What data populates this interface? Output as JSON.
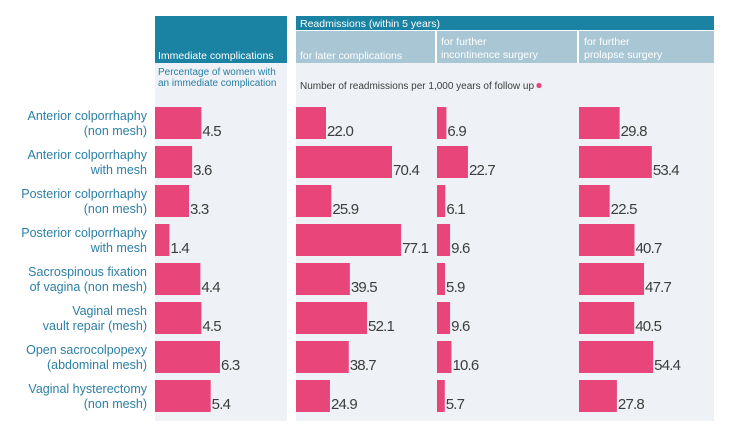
{
  "chart_data": {
    "type": "bar",
    "orientation": "horizontal",
    "colors": {
      "bar": "#e8467a",
      "header_dark": "#1a82a3",
      "header_light": "#a9c6d5",
      "panel_bg": "#eef1f5",
      "label": "#2b7fa6",
      "value": "#3d3d3d",
      "header_text": "#ffffff",
      "info_dot": "#e8467a"
    },
    "readmissions_header": "Readmissions (within 5 years)",
    "categories": [
      "Anterior colporrhaphy (non mesh)",
      "Anterior colporrhaphy with mesh",
      "Posterior colporrhaphy (non mesh)",
      "Posterior colporrhaphy with mesh",
      "Sacrospinous fixation of vagina (non mesh)",
      "Vaginal mesh vault repair (mesh)",
      "Open sacrocolpopexy (abdominal mesh)",
      "Vaginal hysterectomy (non mesh)"
    ],
    "category_lines": [
      [
        "Anterior colporrhaphy",
        "(non mesh)"
      ],
      [
        "Anterior colporrhaphy",
        "with mesh"
      ],
      [
        "Posterior colporrhaphy",
        "(non mesh)"
      ],
      [
        "Posterior colporrhaphy",
        "with mesh"
      ],
      [
        "Sacrospinous fixation",
        "of vagina (non mesh)"
      ],
      [
        "Vaginal mesh",
        "vault repair (mesh)"
      ],
      [
        "Open sacrocolpopexy",
        "(abdominal mesh)"
      ],
      [
        "Vaginal hysterectomy",
        "(non mesh)"
      ]
    ],
    "series": [
      {
        "name": "Immediate complications",
        "header_lines": [
          "Immediate complications"
        ],
        "subtitle_lines": [
          "Percentage of women with",
          "an immediate complication"
        ],
        "values": [
          4.5,
          3.6,
          3.3,
          1.4,
          4.4,
          4.5,
          6.3,
          5.4
        ],
        "labels": [
          "4.5",
          "3.6",
          "3.3",
          "1.4",
          "4.4",
          "4.5",
          "6.3",
          "5.4"
        ],
        "xlim": [
          0,
          8
        ]
      },
      {
        "name": "for later complications",
        "header_lines": [
          "for later complications"
        ],
        "values": [
          22.0,
          70.4,
          25.9,
          77.1,
          39.5,
          52.1,
          38.7,
          24.9
        ],
        "labels": [
          "22.0",
          "70.4",
          "25.9",
          "77.1",
          "39.5",
          "52.1",
          "38.7",
          "24.9"
        ],
        "xlim": [
          0,
          100
        ]
      },
      {
        "name": "for further incontinence surgery",
        "header_lines": [
          "for further",
          "incontinence surgery"
        ],
        "values": [
          6.9,
          22.7,
          6.1,
          9.6,
          5.9,
          9.6,
          10.6,
          5.7
        ],
        "labels": [
          "6.9",
          "22.7",
          "6.1",
          "9.6",
          "5.9",
          "9.6",
          "10.6",
          "5.7"
        ],
        "xlim": [
          0,
          100
        ]
      },
      {
        "name": "for further prolapse surgery",
        "header_lines": [
          "for further",
          "prolapse surgery"
        ],
        "values": [
          29.8,
          53.4,
          22.5,
          40.7,
          47.7,
          40.5,
          54.4,
          27.8
        ],
        "labels": [
          "29.8",
          "53.4",
          "22.5",
          "40.7",
          "47.7",
          "40.5",
          "54.4",
          "27.8"
        ],
        "xlim": [
          0,
          100
        ]
      }
    ],
    "readmissions_subtitle": "Number of readmissions per 1,000 years of follow up"
  }
}
